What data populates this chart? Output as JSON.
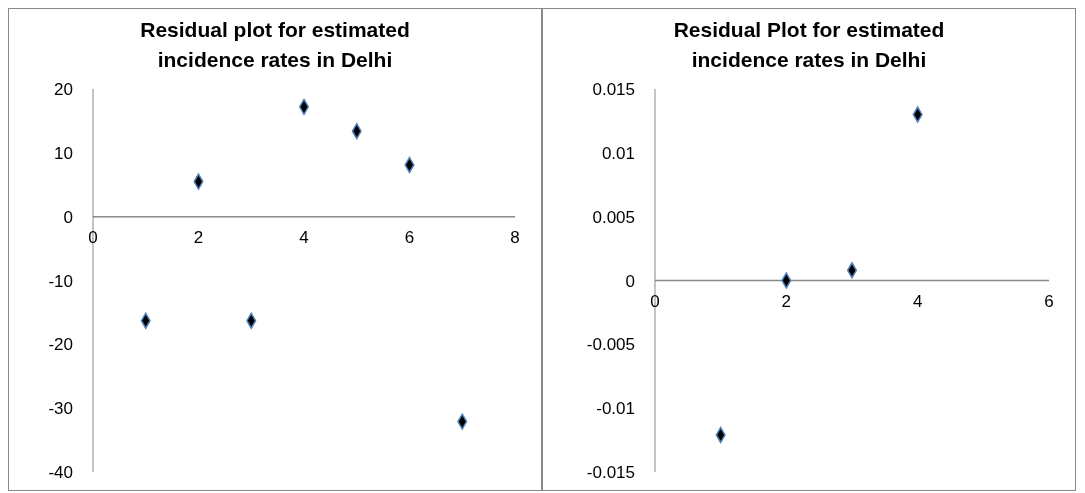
{
  "chart_data": [
    {
      "type": "scatter",
      "title": "Residual plot for estimated incidence rates in Delhi",
      "x": [
        1,
        2,
        3,
        4,
        5,
        6,
        7
      ],
      "values": [
        -16.3,
        5.5,
        -16.3,
        17.2,
        13.4,
        8.1,
        -32.1
      ],
      "color": "#000000",
      "marker": "diamond",
      "xlim": [
        0,
        8
      ],
      "xticks": [
        0,
        2,
        4,
        6,
        8
      ],
      "ylim": [
        -40,
        20
      ],
      "yticks": [
        -40,
        -30,
        -20,
        -10,
        0,
        10,
        20
      ]
    },
    {
      "type": "scatter",
      "title": "Residual Plot for estimated incidence rates in Delhi",
      "x": [
        1,
        2,
        3,
        4
      ],
      "values": [
        -0.0121,
        0,
        0.0008,
        0.013
      ],
      "color": "#000000",
      "marker": "diamond",
      "xlim": [
        0,
        6
      ],
      "xticks": [
        0,
        2,
        4,
        6
      ],
      "ylim": [
        -0.015,
        0.015
      ],
      "yticks": [
        -0.015,
        -0.01,
        -0.005,
        0,
        0.005,
        0.01,
        0.015
      ]
    }
  ]
}
